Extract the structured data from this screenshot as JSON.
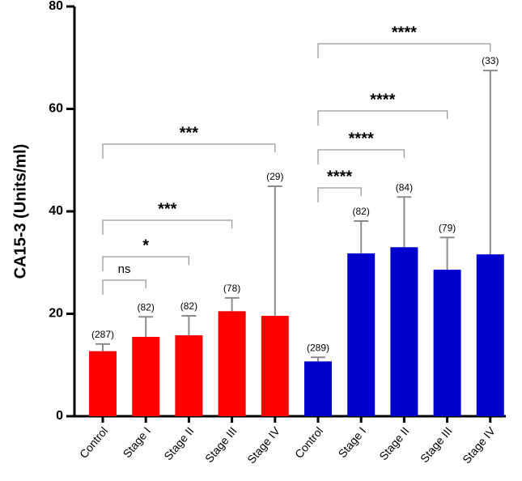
{
  "chart_data": {
    "type": "bar",
    "ylabel": "CA15-3 (Units/ml)",
    "categories": [
      "Control",
      "Stage I",
      "Stage II",
      "Stage III",
      "Stage IV",
      "Control",
      "Stage I",
      "Stage II",
      "Stage III",
      "Stage IV"
    ],
    "values": [
      12.7,
      15.5,
      15.8,
      20.5,
      19.6,
      10.7,
      31.8,
      33.0,
      28.6,
      31.6
    ],
    "errors": [
      1.4,
      3.9,
      3.8,
      2.6,
      25.3,
      0.8,
      6.3,
      9.8,
      6.3,
      35.9
    ],
    "n_labels": [
      "(287)",
      "(82)",
      "(82)",
      "(78)",
      "(29)",
      "(289)",
      "(82)",
      "(84)",
      "(79)",
      "(33)"
    ],
    "bar_colors": [
      "#ff0000",
      "#ff0000",
      "#ff0000",
      "#ff0000",
      "#ff0000",
      "#0000cc",
      "#0000cc",
      "#0000cc",
      "#0000cc",
      "#0000cc"
    ],
    "error_color": "#8c8c8c",
    "brackets": [
      {
        "from": 0,
        "to": 1,
        "label": "ns"
      },
      {
        "from": 0,
        "to": 2,
        "label": "*"
      },
      {
        "from": 0,
        "to": 3,
        "label": "***"
      },
      {
        "from": 0,
        "to": 4,
        "label": "***"
      },
      {
        "from": 5,
        "to": 6,
        "label": "****"
      },
      {
        "from": 5,
        "to": 7,
        "label": "****"
      },
      {
        "from": 5,
        "to": 8,
        "label": "****"
      },
      {
        "from": 5,
        "to": 9,
        "label": "****"
      }
    ],
    "ylim": [
      0,
      80
    ],
    "yticks": [
      0,
      20,
      40,
      60,
      80
    ],
    "grid": false
  }
}
